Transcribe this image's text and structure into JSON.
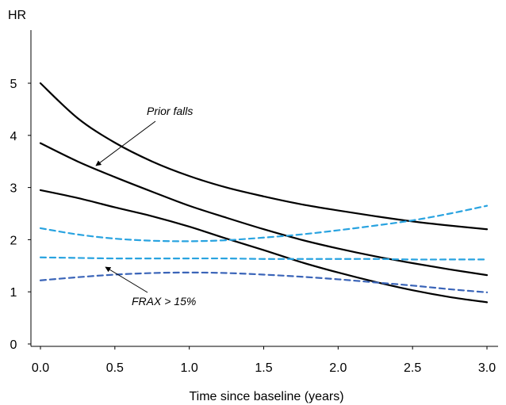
{
  "chart_data": {
    "type": "line",
    "title": "",
    "xlabel": "Time since baseline (years)",
    "ylabel": "HR",
    "xlim": [
      0,
      3.0
    ],
    "ylim": [
      0,
      6
    ],
    "x_ticks": [
      "0.0",
      "0.5",
      "1.0",
      "1.5",
      "2.0",
      "2.5",
      "3.0"
    ],
    "y_ticks": [
      "0",
      "1",
      "2",
      "3",
      "4",
      "5"
    ],
    "grid": false,
    "legend": "none",
    "annotations": [
      {
        "text": "Prior falls"
      },
      {
        "text": "FRAX > 15%"
      }
    ],
    "series": [
      {
        "group": "Prior falls",
        "role": "upper",
        "style": "solid",
        "color": "#000000",
        "x": [
          0,
          0.25,
          0.5,
          0.75,
          1.0,
          1.25,
          1.5,
          1.75,
          2.0,
          2.25,
          2.5,
          2.75,
          3.0
        ],
        "y": [
          5.0,
          4.33,
          3.86,
          3.5,
          3.22,
          3.0,
          2.83,
          2.68,
          2.56,
          2.45,
          2.35,
          2.27,
          2.2
        ]
      },
      {
        "group": "Prior falls",
        "role": "estimate",
        "style": "solid",
        "color": "#000000",
        "x": [
          0,
          0.25,
          0.5,
          0.75,
          1.0,
          1.25,
          1.5,
          1.75,
          2.0,
          2.25,
          2.5,
          2.75,
          3.0
        ],
        "y": [
          3.85,
          3.5,
          3.2,
          2.92,
          2.65,
          2.42,
          2.2,
          2.0,
          1.83,
          1.68,
          1.55,
          1.43,
          1.32
        ]
      },
      {
        "group": "Prior falls",
        "role": "lower",
        "style": "solid",
        "color": "#000000",
        "x": [
          0,
          0.25,
          0.5,
          0.75,
          1.0,
          1.25,
          1.5,
          1.75,
          2.0,
          2.25,
          2.5,
          2.75,
          3.0
        ],
        "y": [
          2.95,
          2.8,
          2.62,
          2.45,
          2.25,
          2.02,
          1.8,
          1.57,
          1.37,
          1.19,
          1.03,
          0.9,
          0.8
        ]
      },
      {
        "group": "FRAX > 15%",
        "role": "upper",
        "style": "dashed",
        "color": "#29a3e0",
        "x": [
          0,
          0.25,
          0.5,
          0.75,
          1.0,
          1.25,
          1.5,
          1.75,
          2.0,
          2.25,
          2.5,
          2.75,
          3.0
        ],
        "y": [
          2.22,
          2.1,
          2.02,
          1.98,
          1.97,
          1.99,
          2.04,
          2.1,
          2.18,
          2.27,
          2.37,
          2.5,
          2.65
        ]
      },
      {
        "group": "FRAX > 15%",
        "role": "estimate",
        "style": "dashed",
        "color": "#29a3e0",
        "x": [
          0,
          0.25,
          0.5,
          0.75,
          1.0,
          1.25,
          1.5,
          1.75,
          2.0,
          2.25,
          2.5,
          2.75,
          3.0
        ],
        "y": [
          1.66,
          1.65,
          1.64,
          1.64,
          1.64,
          1.64,
          1.63,
          1.63,
          1.63,
          1.63,
          1.62,
          1.62,
          1.62
        ]
      },
      {
        "group": "FRAX > 15%",
        "role": "lower",
        "style": "dashed",
        "color": "#3a64b8",
        "x": [
          0,
          0.25,
          0.5,
          0.75,
          1.0,
          1.25,
          1.5,
          1.75,
          2.0,
          2.25,
          2.5,
          2.75,
          3.0
        ],
        "y": [
          1.22,
          1.28,
          1.33,
          1.36,
          1.37,
          1.36,
          1.33,
          1.29,
          1.24,
          1.18,
          1.12,
          1.05,
          0.99
        ]
      }
    ]
  }
}
